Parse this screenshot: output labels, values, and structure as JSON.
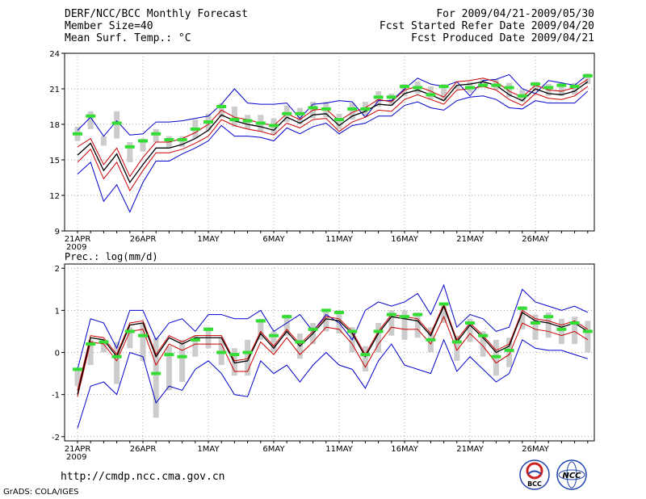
{
  "header": {
    "title": "DERF/NCC/BCC Monthly Forecast",
    "member_size": "Member Size=40",
    "variable": "Mean Surf. Temp.: °C",
    "period": "For 2009/04/21-2009/05/30",
    "started": "Fcst Started Refer Date 2009/04/20",
    "produced": "Fcst Produced Date 2009/04/21"
  },
  "footer": {
    "url": "http://cmdp.ncc.cma.gov.cn",
    "grads": "GrADS: COLA/IGES",
    "logo_bcc": "BCC",
    "logo_ncc": "NCC"
  },
  "colors": {
    "envelope": "#0000cc",
    "spread": "#cc0000",
    "mean": "#000000",
    "median_mark": "#33dd33",
    "bar": "#cccccc"
  },
  "chart_data": [
    {
      "type": "line",
      "title": "Mean Surf. Temp.: °C",
      "x_labels": [
        "21APR",
        "26APR",
        "1MAY",
        "6MAY",
        "11MAY",
        "16MAY",
        "21MAY",
        "26MAY"
      ],
      "x_label_sub": "2009",
      "ylim": [
        9,
        24
      ],
      "yticks": [
        9,
        12,
        15,
        18,
        21,
        24
      ],
      "days": 40,
      "series": [
        {
          "name": "max",
          "values": [
            17.5,
            18.6,
            17.0,
            18.3,
            17.1,
            17.2,
            18.2,
            18.2,
            18.3,
            18.5,
            18.7,
            19.7,
            21.0,
            19.8,
            19.7,
            19.7,
            19.8,
            18.5,
            19.7,
            19.8,
            20.0,
            19.9,
            18.6,
            20.0,
            20.0,
            21.0,
            21.9,
            21.4,
            21.2,
            21.6,
            20.4,
            21.7,
            21.8,
            22.2,
            21.0,
            20.6,
            21.7,
            21.5,
            21.3,
            22.2
          ]
        },
        {
          "name": "upper",
          "values": [
            16.1,
            16.8,
            14.6,
            16.0,
            13.6,
            15.2,
            16.5,
            16.5,
            16.8,
            17.3,
            18.0,
            19.2,
            18.6,
            18.4,
            18.1,
            17.9,
            18.9,
            18.4,
            19.2,
            19.3,
            18.3,
            19.0,
            19.4,
            20.1,
            19.9,
            20.9,
            21.2,
            20.8,
            20.3,
            21.6,
            21.7,
            21.9,
            21.6,
            20.8,
            20.3,
            21.3,
            20.9,
            20.8,
            21.1,
            21.8
          ]
        },
        {
          "name": "mean",
          "values": [
            15.4,
            16.4,
            14.1,
            15.5,
            13.1,
            14.6,
            16.0,
            16.0,
            16.3,
            16.8,
            17.5,
            18.8,
            18.3,
            18.0,
            17.8,
            17.5,
            18.6,
            18.1,
            18.8,
            18.9,
            17.9,
            18.7,
            19.1,
            19.7,
            19.6,
            20.6,
            20.9,
            20.5,
            20.0,
            21.3,
            21.4,
            21.6,
            21.3,
            20.5,
            20.0,
            21.0,
            20.6,
            20.5,
            20.8,
            21.6
          ]
        },
        {
          "name": "lower",
          "values": [
            14.8,
            15.9,
            13.4,
            14.8,
            12.4,
            14.1,
            15.6,
            15.6,
            15.9,
            16.4,
            17.0,
            18.4,
            17.9,
            17.6,
            17.4,
            17.1,
            18.1,
            17.7,
            18.4,
            18.5,
            17.4,
            18.2,
            18.6,
            19.2,
            19.1,
            20.1,
            20.5,
            20.1,
            19.7,
            20.9,
            21.0,
            21.2,
            20.9,
            20.1,
            19.6,
            20.6,
            20.2,
            20.1,
            20.4,
            21.2
          ]
        },
        {
          "name": "min",
          "values": [
            13.8,
            14.8,
            11.5,
            12.9,
            10.6,
            13.1,
            14.9,
            14.9,
            15.5,
            16.0,
            16.6,
            17.9,
            17.0,
            17.0,
            16.9,
            16.6,
            17.7,
            17.2,
            17.8,
            18.1,
            17.2,
            17.9,
            18.1,
            18.7,
            18.7,
            19.6,
            19.9,
            19.4,
            19.2,
            20.0,
            20.3,
            20.4,
            20.1,
            19.4,
            19.3,
            20.0,
            19.8,
            19.8,
            19.8,
            20.8
          ]
        },
        {
          "name": "median",
          "values": [
            17.2,
            18.7,
            null,
            18.1,
            16.1,
            16.6,
            17.2,
            16.7,
            16.7,
            17.6,
            18.2,
            19.5,
            18.4,
            18.3,
            18.1,
            17.9,
            18.9,
            18.9,
            19.4,
            19.3,
            18.4,
            19.3,
            19.3,
            20.3,
            20.3,
            21.2,
            21.1,
            20.5,
            21.2,
            null,
            21.1,
            21.3,
            21.3,
            21.1,
            20.4,
            21.4,
            21.1,
            21.3,
            21.2,
            22.1
          ]
        },
        {
          "name": "box_top",
          "values": [
            17.8,
            19.1,
            17.0,
            19.1,
            16.5,
            16.8,
            17.6,
            17.0,
            17.0,
            18.4,
            18.9,
            19.8,
            19.5,
            18.8,
            18.8,
            18.5,
            19.6,
            19.4,
            19.9,
            19.9,
            18.9,
            19.8,
            19.9,
            20.8,
            20.6,
            21.4,
            21.6,
            21.2,
            21.4,
            21.3,
            21.6,
            21.8,
            21.8,
            21.5,
            20.9,
            21.6,
            21.4,
            21.5,
            21.5,
            22.3
          ]
        },
        {
          "name": "box_bottom",
          "values": [
            16.6,
            17.6,
            16.2,
            16.8,
            14.8,
            15.7,
            16.5,
            16.0,
            16.1,
            16.8,
            17.5,
            18.6,
            17.8,
            17.6,
            17.4,
            17.1,
            18.2,
            18.0,
            18.5,
            18.6,
            17.6,
            18.4,
            18.7,
            19.5,
            19.6,
            20.4,
            20.6,
            20.1,
            20.0,
            21.0,
            20.7,
            21.1,
            20.9,
            20.3,
            19.9,
            20.8,
            20.4,
            20.4,
            20.5,
            21.4
          ]
        }
      ]
    },
    {
      "type": "line",
      "title": "Prec.: log(mm/d)",
      "x_labels": [
        "21APR",
        "26APR",
        "1MAY",
        "6MAY",
        "11MAY",
        "16MAY",
        "21MAY",
        "26MAY"
      ],
      "x_label_sub": "2009",
      "ylim": [
        -2.1,
        2.1
      ],
      "yticks": [
        -2,
        -1,
        0,
        1,
        2
      ],
      "days": 40,
      "series": [
        {
          "name": "max",
          "values": [
            -0.4,
            0.8,
            0.7,
            0.1,
            1.0,
            1.0,
            0.3,
            0.7,
            0.8,
            0.5,
            0.9,
            0.9,
            0.8,
            0.8,
            1.0,
            0.5,
            0.7,
            0.9,
            0.5,
            0.9,
            0.7,
            0.3,
            1.0,
            1.2,
            1.1,
            1.2,
            1.4,
            0.9,
            1.6,
            0.6,
            0.9,
            0.8,
            0.5,
            0.6,
            1.5,
            1.2,
            1.1,
            1.0,
            1.1,
            0.95
          ]
        },
        {
          "name": "upper",
          "values": [
            -0.9,
            0.4,
            0.35,
            -0.05,
            0.7,
            0.75,
            -0.05,
            0.4,
            0.25,
            0.4,
            0.4,
            0.4,
            -0.2,
            -0.15,
            0.5,
            0.15,
            0.55,
            0.2,
            0.5,
            0.85,
            0.8,
            0.5,
            -0.05,
            0.5,
            0.9,
            0.85,
            0.8,
            0.45,
            1.15,
            0.3,
            0.7,
            0.4,
            0.05,
            0.2,
            1.0,
            0.8,
            0.75,
            0.65,
            0.75,
            0.55
          ]
        },
        {
          "name": "mean",
          "values": [
            -1.0,
            0.35,
            0.3,
            -0.1,
            0.65,
            0.7,
            -0.1,
            0.35,
            0.2,
            0.35,
            0.35,
            0.35,
            -0.25,
            -0.2,
            0.45,
            0.1,
            0.5,
            0.15,
            0.45,
            0.8,
            0.75,
            0.45,
            -0.1,
            0.45,
            0.85,
            0.8,
            0.75,
            0.4,
            1.1,
            0.25,
            0.65,
            0.35,
            0.0,
            0.15,
            0.95,
            0.75,
            0.7,
            0.6,
            0.7,
            0.5
          ]
        },
        {
          "name": "lower",
          "values": [
            -1.05,
            0.25,
            0.2,
            -0.2,
            0.5,
            0.55,
            -0.3,
            0.2,
            0.05,
            0.2,
            0.2,
            0.2,
            -0.45,
            -0.45,
            0.25,
            -0.05,
            0.35,
            -0.05,
            0.25,
            0.6,
            0.55,
            0.2,
            -0.35,
            0.2,
            0.6,
            0.55,
            0.55,
            0.2,
            0.85,
            0.05,
            0.45,
            0.15,
            -0.25,
            -0.05,
            0.7,
            0.55,
            0.5,
            0.4,
            0.5,
            0.3
          ]
        },
        {
          "name": "min",
          "values": [
            -1.8,
            -0.8,
            -0.7,
            -1.0,
            0.0,
            -0.1,
            -1.2,
            -0.8,
            -0.9,
            -0.4,
            -0.2,
            -0.5,
            -1.0,
            -1.05,
            -0.2,
            -0.5,
            -0.3,
            -0.7,
            -0.3,
            0.0,
            -0.3,
            -0.4,
            -0.85,
            -0.2,
            0.2,
            -0.3,
            -0.4,
            -0.5,
            0.3,
            -0.45,
            -0.1,
            -0.4,
            -0.7,
            -0.5,
            0.3,
            0.1,
            0.05,
            0.05,
            -0.05,
            -0.15
          ]
        },
        {
          "name": "median",
          "values": [
            -0.4,
            0.2,
            0.25,
            -0.1,
            0.5,
            0.4,
            -0.5,
            -0.05,
            -0.1,
            0.3,
            0.55,
            0.0,
            -0.05,
            0.0,
            0.75,
            0.4,
            0.85,
            0.25,
            0.55,
            1.0,
            0.95,
            0.5,
            -0.05,
            0.5,
            0.9,
            0.85,
            0.9,
            0.3,
            1.15,
            0.25,
            0.7,
            0.4,
            -0.1,
            0.05,
            1.05,
            0.7,
            0.85,
            0.55,
            0.7,
            0.5
          ]
        },
        {
          "name": "box_top",
          "values": [
            -0.4,
            0.3,
            0.25,
            0.25,
            0.6,
            0.7,
            0.35,
            0.15,
            0.3,
            0.4,
            0.6,
            0.35,
            0.1,
            0.3,
            0.8,
            0.5,
            0.9,
            0.45,
            0.7,
            1.0,
            1.0,
            0.6,
            0.15,
            0.7,
            1.0,
            1.0,
            0.95,
            0.6,
            1.1,
            0.4,
            0.8,
            0.5,
            0.3,
            0.35,
            1.1,
            0.9,
            0.95,
            0.8,
            0.85,
            0.75
          ]
        },
        {
          "name": "box_bottom",
          "values": [
            -0.8,
            -0.3,
            0.0,
            -0.75,
            0.1,
            -0.2,
            -1.55,
            -0.9,
            -0.7,
            -0.1,
            0.1,
            -0.3,
            -0.55,
            -0.55,
            0.3,
            0.0,
            0.4,
            -0.15,
            0.2,
            0.5,
            0.45,
            0.0,
            -0.45,
            0.0,
            0.4,
            0.3,
            0.35,
            0.0,
            0.7,
            -0.2,
            0.25,
            -0.1,
            -0.55,
            -0.35,
            0.55,
            0.3,
            0.35,
            0.2,
            0.2,
            0.0
          ]
        }
      ]
    }
  ]
}
